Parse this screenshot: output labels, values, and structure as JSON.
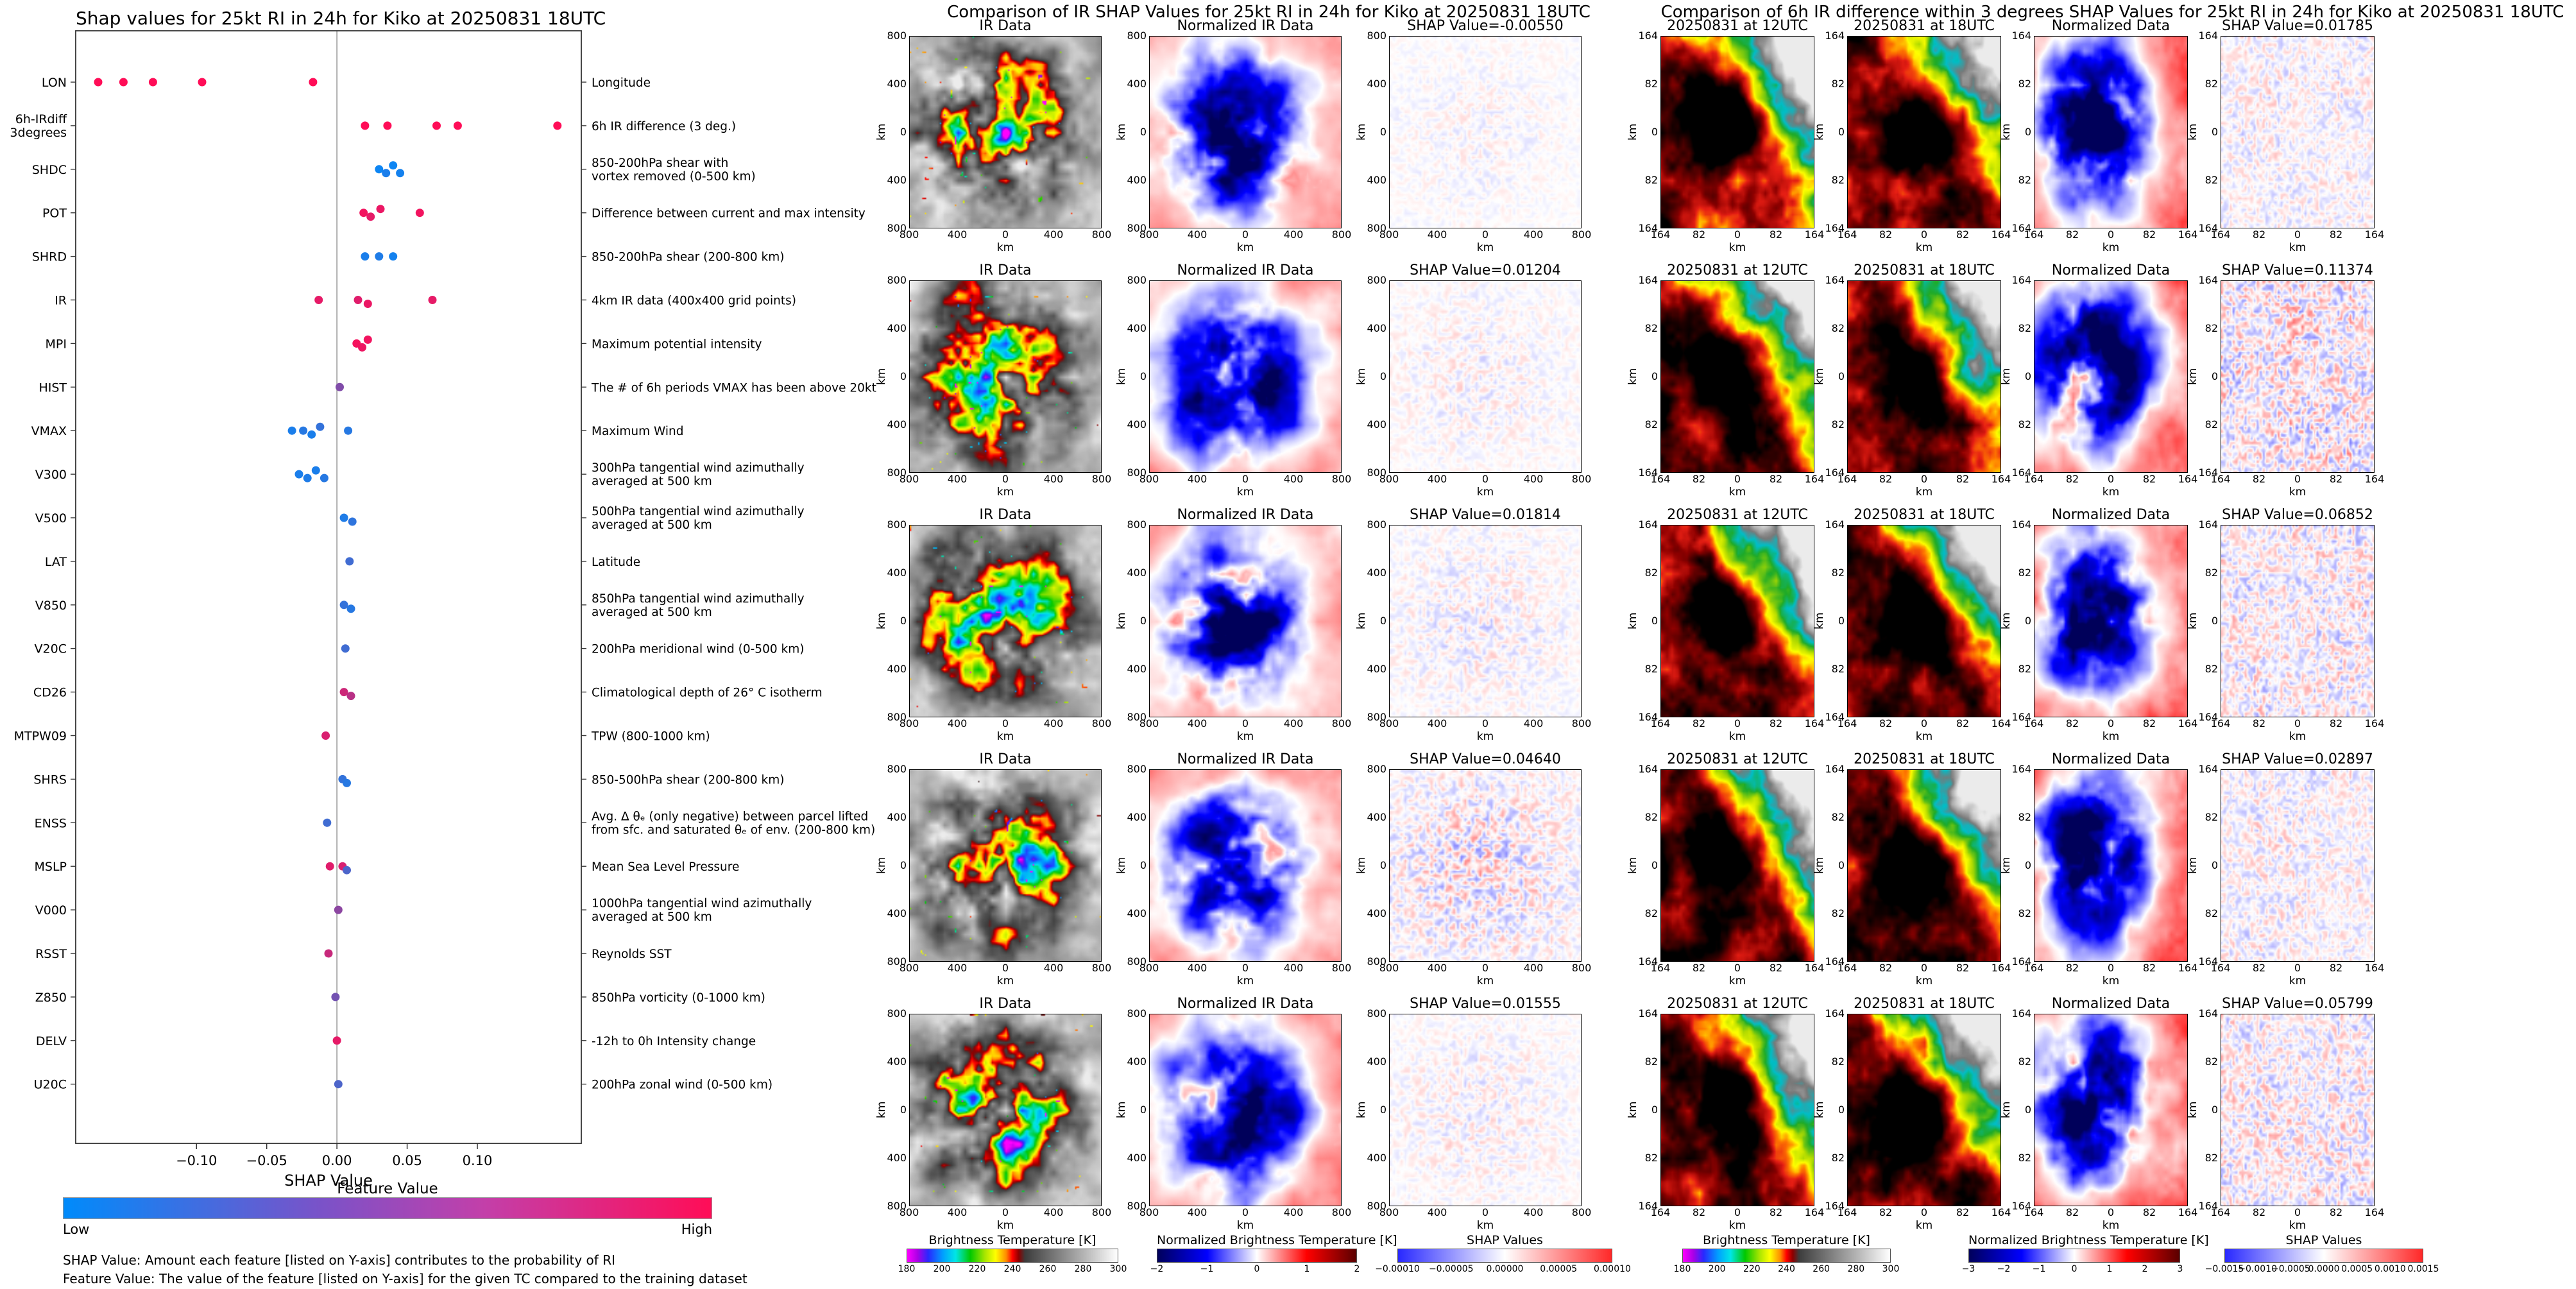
{
  "chart_data": {
    "type": "scatter",
    "title": "Shap values for 25kt RI in 24h for Kiko at 20250831 18UTC",
    "xlabel": "SHAP Value",
    "xlim": [
      -0.186,
      0.174
    ],
    "grid": "off",
    "color_scale": {
      "low": "#008bfb",
      "high": "#ff0d57"
    },
    "features": [
      {
        "code": "LON",
        "desc": "Longitude",
        "points": [
          [
            -0.17,
            1
          ],
          [
            -0.152,
            1
          ],
          [
            -0.131,
            1
          ],
          [
            -0.096,
            1
          ],
          [
            -0.017,
            1
          ]
        ]
      },
      {
        "code": "6h-IRdiff\n3degrees",
        "desc": "6h IR difference (3 deg.)",
        "points": [
          [
            0.02,
            1
          ],
          [
            0.036,
            1
          ],
          [
            0.071,
            1
          ],
          [
            0.086,
            1
          ],
          [
            0.157,
            1
          ]
        ]
      },
      {
        "code": "SHDC",
        "desc": "850-200hPa shear with\nvortex removed (0-500 km)",
        "points": [
          [
            0.03,
            0.05
          ],
          [
            0.035,
            0.1
          ],
          [
            0.04,
            0.05
          ],
          [
            0.045,
            0.08
          ]
        ]
      },
      {
        "code": "POT",
        "desc": "Difference between current and max intensity",
        "points": [
          [
            0.019,
            0.95
          ],
          [
            0.024,
            0.9
          ],
          [
            0.031,
            0.92
          ],
          [
            0.059,
            0.95
          ]
        ]
      },
      {
        "code": "SHRD",
        "desc": "850-200hPa shear (200-800 km)",
        "points": [
          [
            0.02,
            0.1
          ],
          [
            0.03,
            0.12
          ],
          [
            0.04,
            0.08
          ]
        ]
      },
      {
        "code": "IR",
        "desc": "4km IR data (400x400 grid points)",
        "points": [
          [
            -0.013,
            0.9
          ],
          [
            0.015,
            0.88
          ],
          [
            0.022,
            0.92
          ],
          [
            0.068,
            0.9
          ]
        ]
      },
      {
        "code": "MPI",
        "desc": "Maximum potential intensity",
        "points": [
          [
            0.014,
            0.96
          ],
          [
            0.018,
            0.93
          ],
          [
            0.022,
            0.95
          ]
        ]
      },
      {
        "code": "HIST",
        "desc": "The # of 6h periods VMAX has been above 20kt",
        "points": [
          [
            0.002,
            0.5
          ]
        ]
      },
      {
        "code": "VMAX",
        "desc": "Maximum Wind",
        "points": [
          [
            -0.032,
            0.1
          ],
          [
            -0.024,
            0.15
          ],
          [
            -0.018,
            0.1
          ],
          [
            -0.012,
            0.2
          ],
          [
            0.008,
            0.15
          ]
        ]
      },
      {
        "code": "V300",
        "desc": "300hPa tangential wind azimuthally\naveraged at 500 km",
        "points": [
          [
            -0.027,
            0.1
          ],
          [
            -0.021,
            0.12
          ],
          [
            -0.015,
            0.1
          ],
          [
            -0.009,
            0.15
          ]
        ]
      },
      {
        "code": "V500",
        "desc": "500hPa tangential wind azimuthally\naveraged at 500 km",
        "points": [
          [
            0.005,
            0.12
          ],
          [
            0.011,
            0.18
          ]
        ]
      },
      {
        "code": "LAT",
        "desc": "Latitude",
        "points": [
          [
            0.009,
            0.25
          ]
        ]
      },
      {
        "code": "V850",
        "desc": "850hPa tangential wind azimuthally\naveraged at 500 km",
        "points": [
          [
            0.005,
            0.2
          ],
          [
            0.01,
            0.15
          ]
        ]
      },
      {
        "code": "V20C",
        "desc": "200hPa meridional wind (0-500 km)",
        "points": [
          [
            0.006,
            0.25
          ]
        ]
      },
      {
        "code": "CD26",
        "desc": "Climatological depth of 26° C isotherm",
        "points": [
          [
            0.005,
            0.8
          ],
          [
            0.01,
            0.72
          ]
        ]
      },
      {
        "code": "MTPW09",
        "desc": "TPW (800-1000 km)",
        "points": [
          [
            -0.008,
            0.85
          ]
        ]
      },
      {
        "code": "SHRS",
        "desc": "850-500hPa shear (200-800 km)",
        "points": [
          [
            0.004,
            0.2
          ],
          [
            0.007,
            0.15
          ]
        ]
      },
      {
        "code": "ENSS",
        "desc": "Avg. Δ θₑ (only negative) between parcel lifted\nfrom sfc. and saturated θₑ of env. (200-800 km)",
        "points": [
          [
            -0.007,
            0.25
          ]
        ]
      },
      {
        "code": "MSLP",
        "desc": "Mean Sea Level Pressure",
        "points": [
          [
            -0.005,
            0.88
          ],
          [
            0.004,
            0.85
          ],
          [
            0.007,
            0.3
          ]
        ]
      },
      {
        "code": "V000",
        "desc": "1000hPa tangential wind azimuthally\naveraged at 500 km",
        "points": [
          [
            0.001,
            0.55
          ]
        ]
      },
      {
        "code": "RSST",
        "desc": "Reynolds SST",
        "points": [
          [
            -0.006,
            0.78
          ]
        ]
      },
      {
        "code": "Z850",
        "desc": "850hPa vorticity (0-1000 km)",
        "points": [
          [
            -0.001,
            0.45
          ]
        ]
      },
      {
        "code": "DELV",
        "desc": "-12h to 0h Intensity change",
        "points": [
          [
            0.0,
            0.9
          ]
        ]
      },
      {
        "code": "U20C",
        "desc": "200hPa zonal wind (0-500 km)",
        "points": [
          [
            0.001,
            0.3
          ]
        ]
      }
    ],
    "ir_shap_values": [
      -0.0055,
      0.01204,
      0.01814,
      0.0464,
      0.01555
    ],
    "ir6_shap_values": [
      0.01785,
      0.11374,
      0.06852,
      0.02897,
      0.05799
    ]
  },
  "shap_plot": {
    "title": "Shap values for 25kt RI in 24h for Kiko at 20250831 18UTC",
    "xlabel": "SHAP Value",
    "xticks": [
      "−0.10",
      "−0.05",
      "0.00",
      "0.05",
      "0.10"
    ],
    "xtick_vals": [
      -0.1,
      -0.05,
      0.0,
      0.05,
      0.1
    ],
    "colorbar": {
      "title": "Feature Value",
      "low_label": "Low",
      "high_label": "High"
    },
    "footnotes": [
      "SHAP Value: Amount each feature [listed on Y-axis] contributes to the probability of RI",
      "Feature Value: The value of the feature [listed on Y-axis] for the given TC compared to the training dataset"
    ]
  },
  "ir_panel": {
    "title": "Comparison of IR SHAP Values for 25kt RI in 24h for Kiko at 20250831 18UTC",
    "col_types": [
      "ir",
      "norm_ir",
      "shap_ir"
    ],
    "axis_label": "km",
    "ticks": [
      "800",
      "400",
      "0",
      "400",
      "800"
    ],
    "rows": [
      {
        "titles": [
          "IR Data",
          "Normalized IR Data",
          "SHAP Value=-0.00550"
        ]
      },
      {
        "titles": [
          "IR Data",
          "Normalized IR Data",
          "SHAP Value=0.01204"
        ]
      },
      {
        "titles": [
          "IR Data",
          "Normalized IR Data",
          "SHAP Value=0.01814"
        ]
      },
      {
        "titles": [
          "IR Data",
          "Normalized IR Data",
          "SHAP Value=0.04640"
        ]
      },
      {
        "titles": [
          "IR Data",
          "Normalized IR Data",
          "SHAP Value=0.01555"
        ]
      }
    ],
    "colorbars": [
      {
        "label": "Brightness Temperature [K]",
        "type": "bt",
        "ticks": [
          "180",
          "200",
          "220",
          "240",
          "260",
          "280",
          "300"
        ]
      },
      {
        "label": "Normalized Brightness Temperature [K]",
        "type": "seismic",
        "ticks": [
          "−2",
          "−1",
          "0",
          "1",
          "2"
        ]
      },
      {
        "label": "SHAP Values",
        "type": "bwr",
        "ticks": [
          "−0.00010",
          "−0.00005",
          "0.00000",
          "0.00005",
          "0.00010"
        ]
      }
    ]
  },
  "diff_panel": {
    "title": "Comparison of 6h IR difference within 3 degrees SHAP Values for 25kt RI in 24h for Kiko at 20250831 18UTC",
    "col_types": [
      "ir6",
      "ir6b",
      "norm_diff",
      "shap_diff"
    ],
    "axis_label": "km",
    "ticks": [
      "164",
      "82",
      "0",
      "82",
      "164"
    ],
    "rows": [
      {
        "titles": [
          "20250831 at 12UTC",
          "20250831 at 18UTC",
          "Normalized Data",
          "SHAP Value=0.01785"
        ]
      },
      {
        "titles": [
          "20250831 at 12UTC",
          "20250831 at 18UTC",
          "Normalized Data",
          "SHAP Value=0.11374"
        ]
      },
      {
        "titles": [
          "20250831 at 12UTC",
          "20250831 at 18UTC",
          "Normalized Data",
          "SHAP Value=0.06852"
        ]
      },
      {
        "titles": [
          "20250831 at 12UTC",
          "20250831 at 18UTC",
          "Normalized Data",
          "SHAP Value=0.02897"
        ]
      },
      {
        "titles": [
          "20250831 at 12UTC",
          "20250831 at 18UTC",
          "Normalized Data",
          "SHAP Value=0.05799"
        ]
      }
    ],
    "colorbars": [
      {
        "label": "Brightness Temperature [K]",
        "type": "bt",
        "ticks": [
          "180",
          "200",
          "220",
          "240",
          "260",
          "280",
          "300"
        ]
      },
      {
        "label": "Normalized Brightness Temperature [K]",
        "type": "seismic",
        "ticks": [
          "−3",
          "−2",
          "−1",
          "0",
          "1",
          "2",
          "3"
        ]
      },
      {
        "label": "SHAP Values",
        "type": "bwr",
        "ticks": [
          "−0.0015",
          "−0.0010",
          "−0.0005",
          "0.0000",
          "0.0005",
          "0.0010",
          "0.0015"
        ]
      }
    ]
  }
}
